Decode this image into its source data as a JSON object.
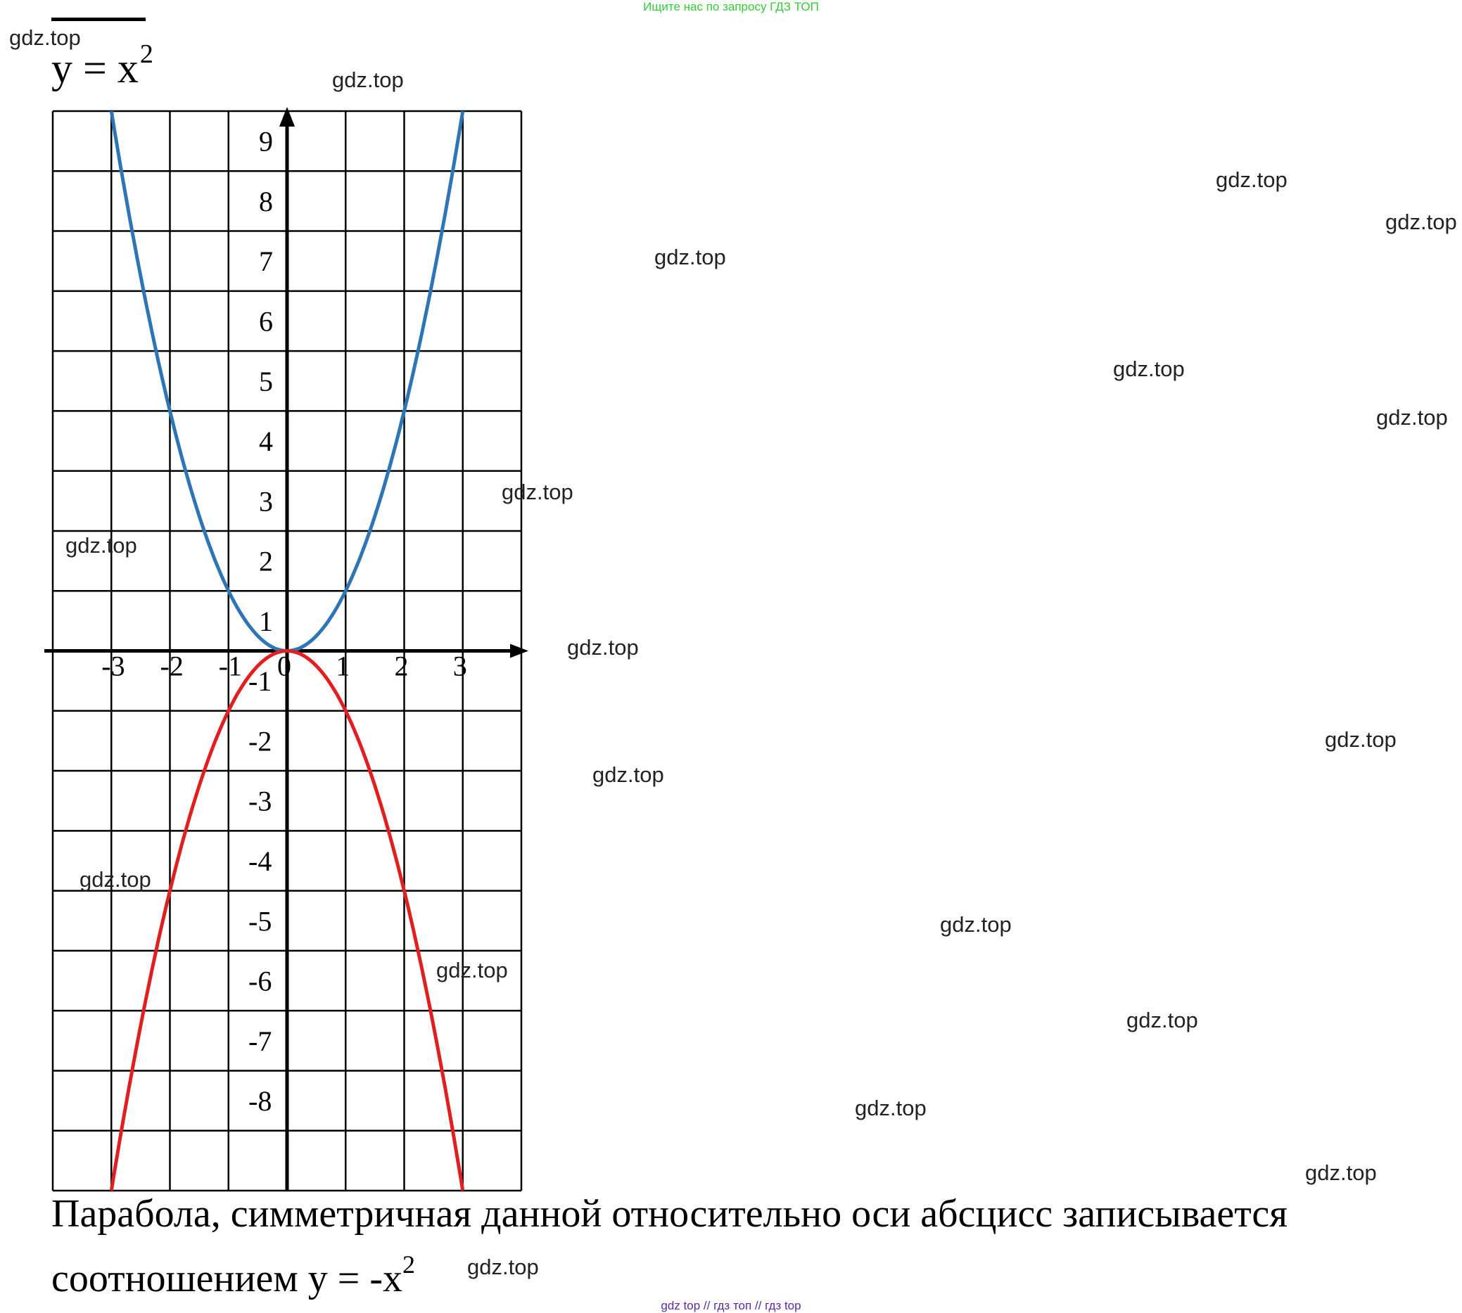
{
  "banner": "Ищите нас по запросу ГДЗ ТОП",
  "title": {
    "lhs": "y = x",
    "exp": "2"
  },
  "watermark": "gdz.top",
  "caption": {
    "line1": "Парабола, симметричная данной относительно оси абсцисс записывается",
    "line2": "соотношением y = -x",
    "exp": "2"
  },
  "footer": "gdz top  //  гдз топ  //  гдз top",
  "chart_data": {
    "type": "line",
    "xlim": [
      -4,
      4
    ],
    "ylim": [
      -9,
      9
    ],
    "grid": true,
    "x_ticks": [
      "-3",
      "-2",
      "-1",
      "0",
      "1",
      "2",
      "3"
    ],
    "y_ticks_pos": [
      "1",
      "2",
      "3",
      "4",
      "5",
      "6",
      "7",
      "8",
      "9"
    ],
    "y_ticks_neg": [
      "-1",
      "-2",
      "-3",
      "-4",
      "-5",
      "-6",
      "-7",
      "-8"
    ],
    "series": [
      {
        "color": "#2e75b6",
        "x": [
          -3,
          -2.5,
          -2,
          -1.5,
          -1,
          -0.5,
          0,
          0.5,
          1,
          1.5,
          2,
          2.5,
          3
        ],
        "y": [
          9,
          6.25,
          4,
          2.25,
          1,
          0.25,
          0,
          0.25,
          1,
          2.25,
          4,
          6.25,
          9
        ]
      },
      {
        "color": "#e02020",
        "x": [
          -3,
          -2.5,
          -2,
          -1.5,
          -1,
          -0.5,
          0,
          0.5,
          1,
          1.5,
          2,
          2.5,
          3
        ],
        "y": [
          -9,
          -6.25,
          -4,
          -2.25,
          -1,
          -0.25,
          0,
          -0.25,
          -1,
          -2.25,
          -4,
          -6.25,
          -9
        ]
      }
    ]
  }
}
